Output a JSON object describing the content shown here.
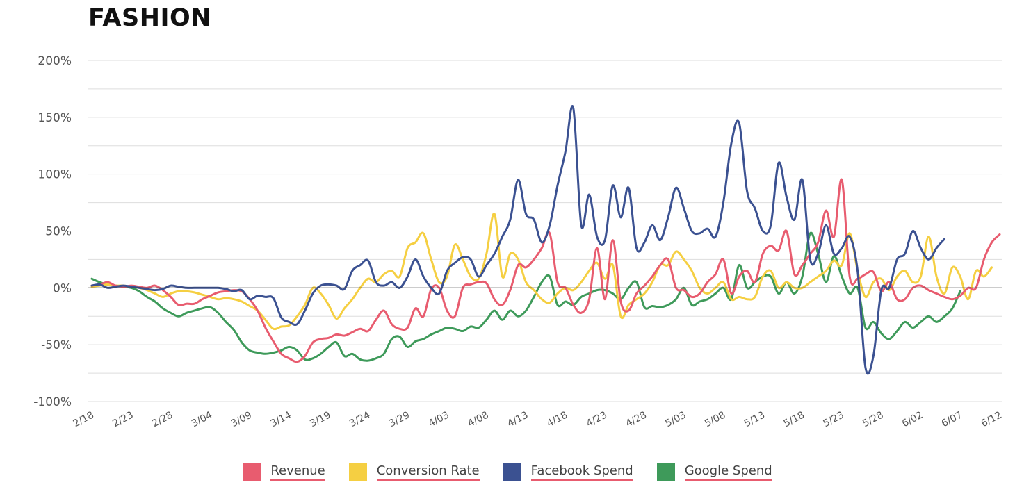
{
  "chart_data": {
    "type": "line",
    "title": "FASHION",
    "xlabel": "",
    "ylabel": "",
    "ylim": [
      -100,
      200
    ],
    "y_ticks": [
      "200%",
      "150%",
      "100%",
      "50%",
      "0%",
      "-50%",
      "-100%"
    ],
    "y_tick_values": [
      200,
      150,
      100,
      50,
      0,
      -50,
      -100
    ],
    "x_tick_labels": [
      "2/18",
      "2/23",
      "2/28",
      "3/04",
      "3/09",
      "3/14",
      "3/19",
      "3/24",
      "3/29",
      "4/03",
      "4/08",
      "4/13",
      "4/18",
      "4/23",
      "4/28",
      "5/03",
      "5/08",
      "5/13",
      "5/18",
      "5/23",
      "5/28",
      "6/02",
      "6/07",
      "6/12"
    ],
    "x_tick_index": [
      0,
      5,
      10,
      15,
      20,
      25,
      30,
      35,
      40,
      45,
      50,
      55,
      60,
      65,
      70,
      75,
      80,
      85,
      90,
      95,
      100,
      105,
      110,
      115
    ],
    "grid": true,
    "legend_position": "bottom",
    "series": [
      {
        "name": "Revenue",
        "color": "#e85c6f",
        "values": [
          2,
          3,
          5,
          2,
          1,
          2,
          1,
          0,
          2,
          -2,
          -8,
          -15,
          -14,
          -14,
          -10,
          -7,
          -4,
          -3,
          -2,
          -3,
          -10,
          -20,
          -35,
          -47,
          -58,
          -62,
          -65,
          -60,
          -48,
          -45,
          -44,
          -41,
          -42,
          -39,
          -36,
          -38,
          -28,
          -20,
          -32,
          -36,
          -35,
          -18,
          -25,
          -1,
          0,
          -20,
          -25,
          0,
          3,
          5,
          4,
          -10,
          -15,
          -2,
          20,
          18,
          25,
          35,
          48,
          5,
          0,
          -15,
          -22,
          -10,
          35,
          -10,
          42,
          -12,
          -20,
          -5,
          2,
          10,
          20,
          25,
          0,
          -2,
          -8,
          -5,
          5,
          12,
          25,
          -5,
          10,
          15,
          5,
          30,
          37,
          33,
          50,
          12,
          20,
          30,
          40,
          68,
          45,
          95,
          10,
          8,
          12,
          14,
          -3,
          5,
          -10,
          -10,
          0,
          2,
          -2,
          -5,
          -8,
          -10,
          -7,
          0,
          0,
          25,
          40,
          47
        ]
      },
      {
        "name": "Conversion Rate",
        "color": "#f5cf42",
        "values": [
          1,
          2,
          3,
          2,
          2,
          1,
          0,
          -2,
          -5,
          -8,
          -5,
          -3,
          -3,
          -4,
          -6,
          -8,
          -10,
          -9,
          -10,
          -12,
          -16,
          -20,
          -28,
          -36,
          -34,
          -33,
          -25,
          -15,
          0,
          -5,
          -15,
          -27,
          -18,
          -10,
          0,
          8,
          5,
          12,
          15,
          10,
          35,
          40,
          48,
          25,
          5,
          10,
          38,
          25,
          10,
          8,
          30,
          65,
          10,
          30,
          25,
          5,
          -2,
          -10,
          -13,
          -5,
          0,
          -2,
          5,
          15,
          22,
          8,
          20,
          -25,
          -15,
          -10,
          -5,
          5,
          20,
          20,
          32,
          25,
          15,
          0,
          -5,
          0,
          5,
          -10,
          -8,
          -10,
          -8,
          10,
          15,
          0,
          5,
          0,
          0,
          5,
          10,
          15,
          24,
          20,
          48,
          15,
          -8,
          5,
          8,
          -2,
          10,
          15,
          5,
          10,
          45,
          10,
          -5,
          18,
          10,
          -10,
          15,
          10,
          18
        ]
      },
      {
        "name": "Facebook Spend",
        "color": "#3b5191",
        "values": [
          2,
          3,
          0,
          1,
          2,
          1,
          0,
          -1,
          -2,
          -1,
          2,
          1,
          0,
          0,
          0,
          0,
          0,
          -1,
          -3,
          -2,
          -10,
          -7,
          -8,
          -9,
          -26,
          -30,
          -32,
          -20,
          -5,
          2,
          3,
          2,
          -1,
          15,
          20,
          24,
          5,
          2,
          5,
          0,
          10,
          25,
          10,
          0,
          -5,
          15,
          22,
          27,
          25,
          10,
          20,
          30,
          45,
          60,
          95,
          65,
          60,
          40,
          55,
          90,
          120,
          158,
          55,
          82,
          45,
          42,
          90,
          62,
          88,
          35,
          40,
          55,
          42,
          62,
          88,
          70,
          50,
          48,
          52,
          45,
          75,
          127,
          145,
          85,
          70,
          50,
          55,
          110,
          80,
          60,
          95,
          25,
          30,
          55,
          30,
          35,
          45,
          15,
          -70,
          -60,
          -2,
          0,
          25,
          30,
          50,
          35,
          25,
          35,
          43
        ]
      },
      {
        "name": "Google Spend",
        "color": "#3e9a5a",
        "values": [
          8,
          5,
          3,
          2,
          1,
          0,
          -3,
          -8,
          -12,
          -18,
          -22,
          -25,
          -22,
          -20,
          -18,
          -17,
          -22,
          -30,
          -37,
          -48,
          -55,
          -57,
          -58,
          -57,
          -55,
          -52,
          -55,
          -63,
          -62,
          -58,
          -52,
          -48,
          -60,
          -58,
          -63,
          -64,
          -62,
          -58,
          -45,
          -43,
          -52,
          -47,
          -45,
          -41,
          -38,
          -35,
          -36,
          -38,
          -34,
          -35,
          -28,
          -20,
          -28,
          -20,
          -25,
          -20,
          -8,
          5,
          10,
          -15,
          -12,
          -15,
          -8,
          -5,
          -2,
          -2,
          -5,
          -10,
          0,
          5,
          -17,
          -16,
          -17,
          -15,
          -10,
          0,
          -15,
          -12,
          -10,
          -5,
          0,
          -10,
          20,
          0,
          5,
          10,
          10,
          -5,
          5,
          -5,
          10,
          48,
          30,
          5,
          28,
          10,
          -5,
          0,
          -35,
          -30,
          -40,
          -45,
          -38,
          -30,
          -35,
          -30,
          -25,
          -30,
          -25,
          -18,
          -3
        ]
      }
    ]
  }
}
